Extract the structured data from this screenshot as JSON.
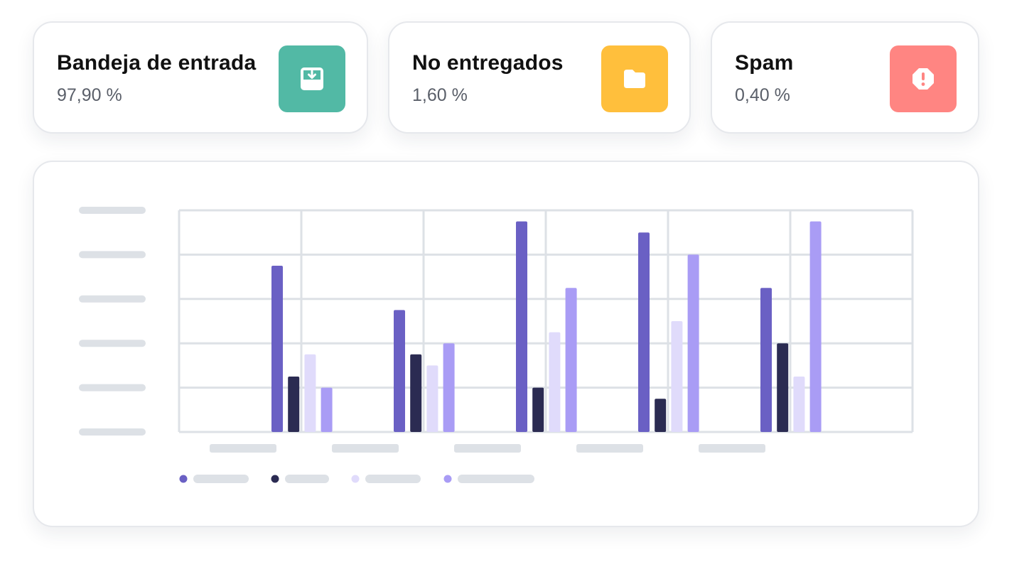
{
  "stats": [
    {
      "title": "Bandeja de entrada",
      "value": "97,90 %",
      "color": "#52b9a5",
      "icon": "inbox-download-icon"
    },
    {
      "title": "No entregados",
      "value": "1,60 %",
      "color": "#ffbf3c",
      "icon": "folder-icon"
    },
    {
      "title": "Spam",
      "value": "0,40 %",
      "color": "#ff8582",
      "icon": "alert-octagon-icon"
    }
  ],
  "colors": {
    "series": [
      "#6a60c4",
      "#2b2b52",
      "#e0dbfb",
      "#a99cf5"
    ],
    "grid": "#dde1e6",
    "placeholder": "#dde1e6"
  },
  "chart_data": {
    "type": "bar",
    "categories": [
      "",
      "",
      "",
      "",
      ""
    ],
    "series": [
      {
        "values": [
          3.75,
          2.75,
          4.75,
          4.5,
          3.25
        ]
      },
      {
        "values": [
          1.25,
          1.75,
          1.0,
          0.75,
          2.0
        ]
      },
      {
        "values": [
          1.75,
          1.5,
          2.25,
          2.5,
          1.25
        ]
      },
      {
        "values": [
          1.0,
          2.0,
          3.25,
          4.0,
          4.75
        ]
      }
    ],
    "ylim": [
      0,
      5
    ],
    "grid": true,
    "legend_position": "bottom-left"
  }
}
